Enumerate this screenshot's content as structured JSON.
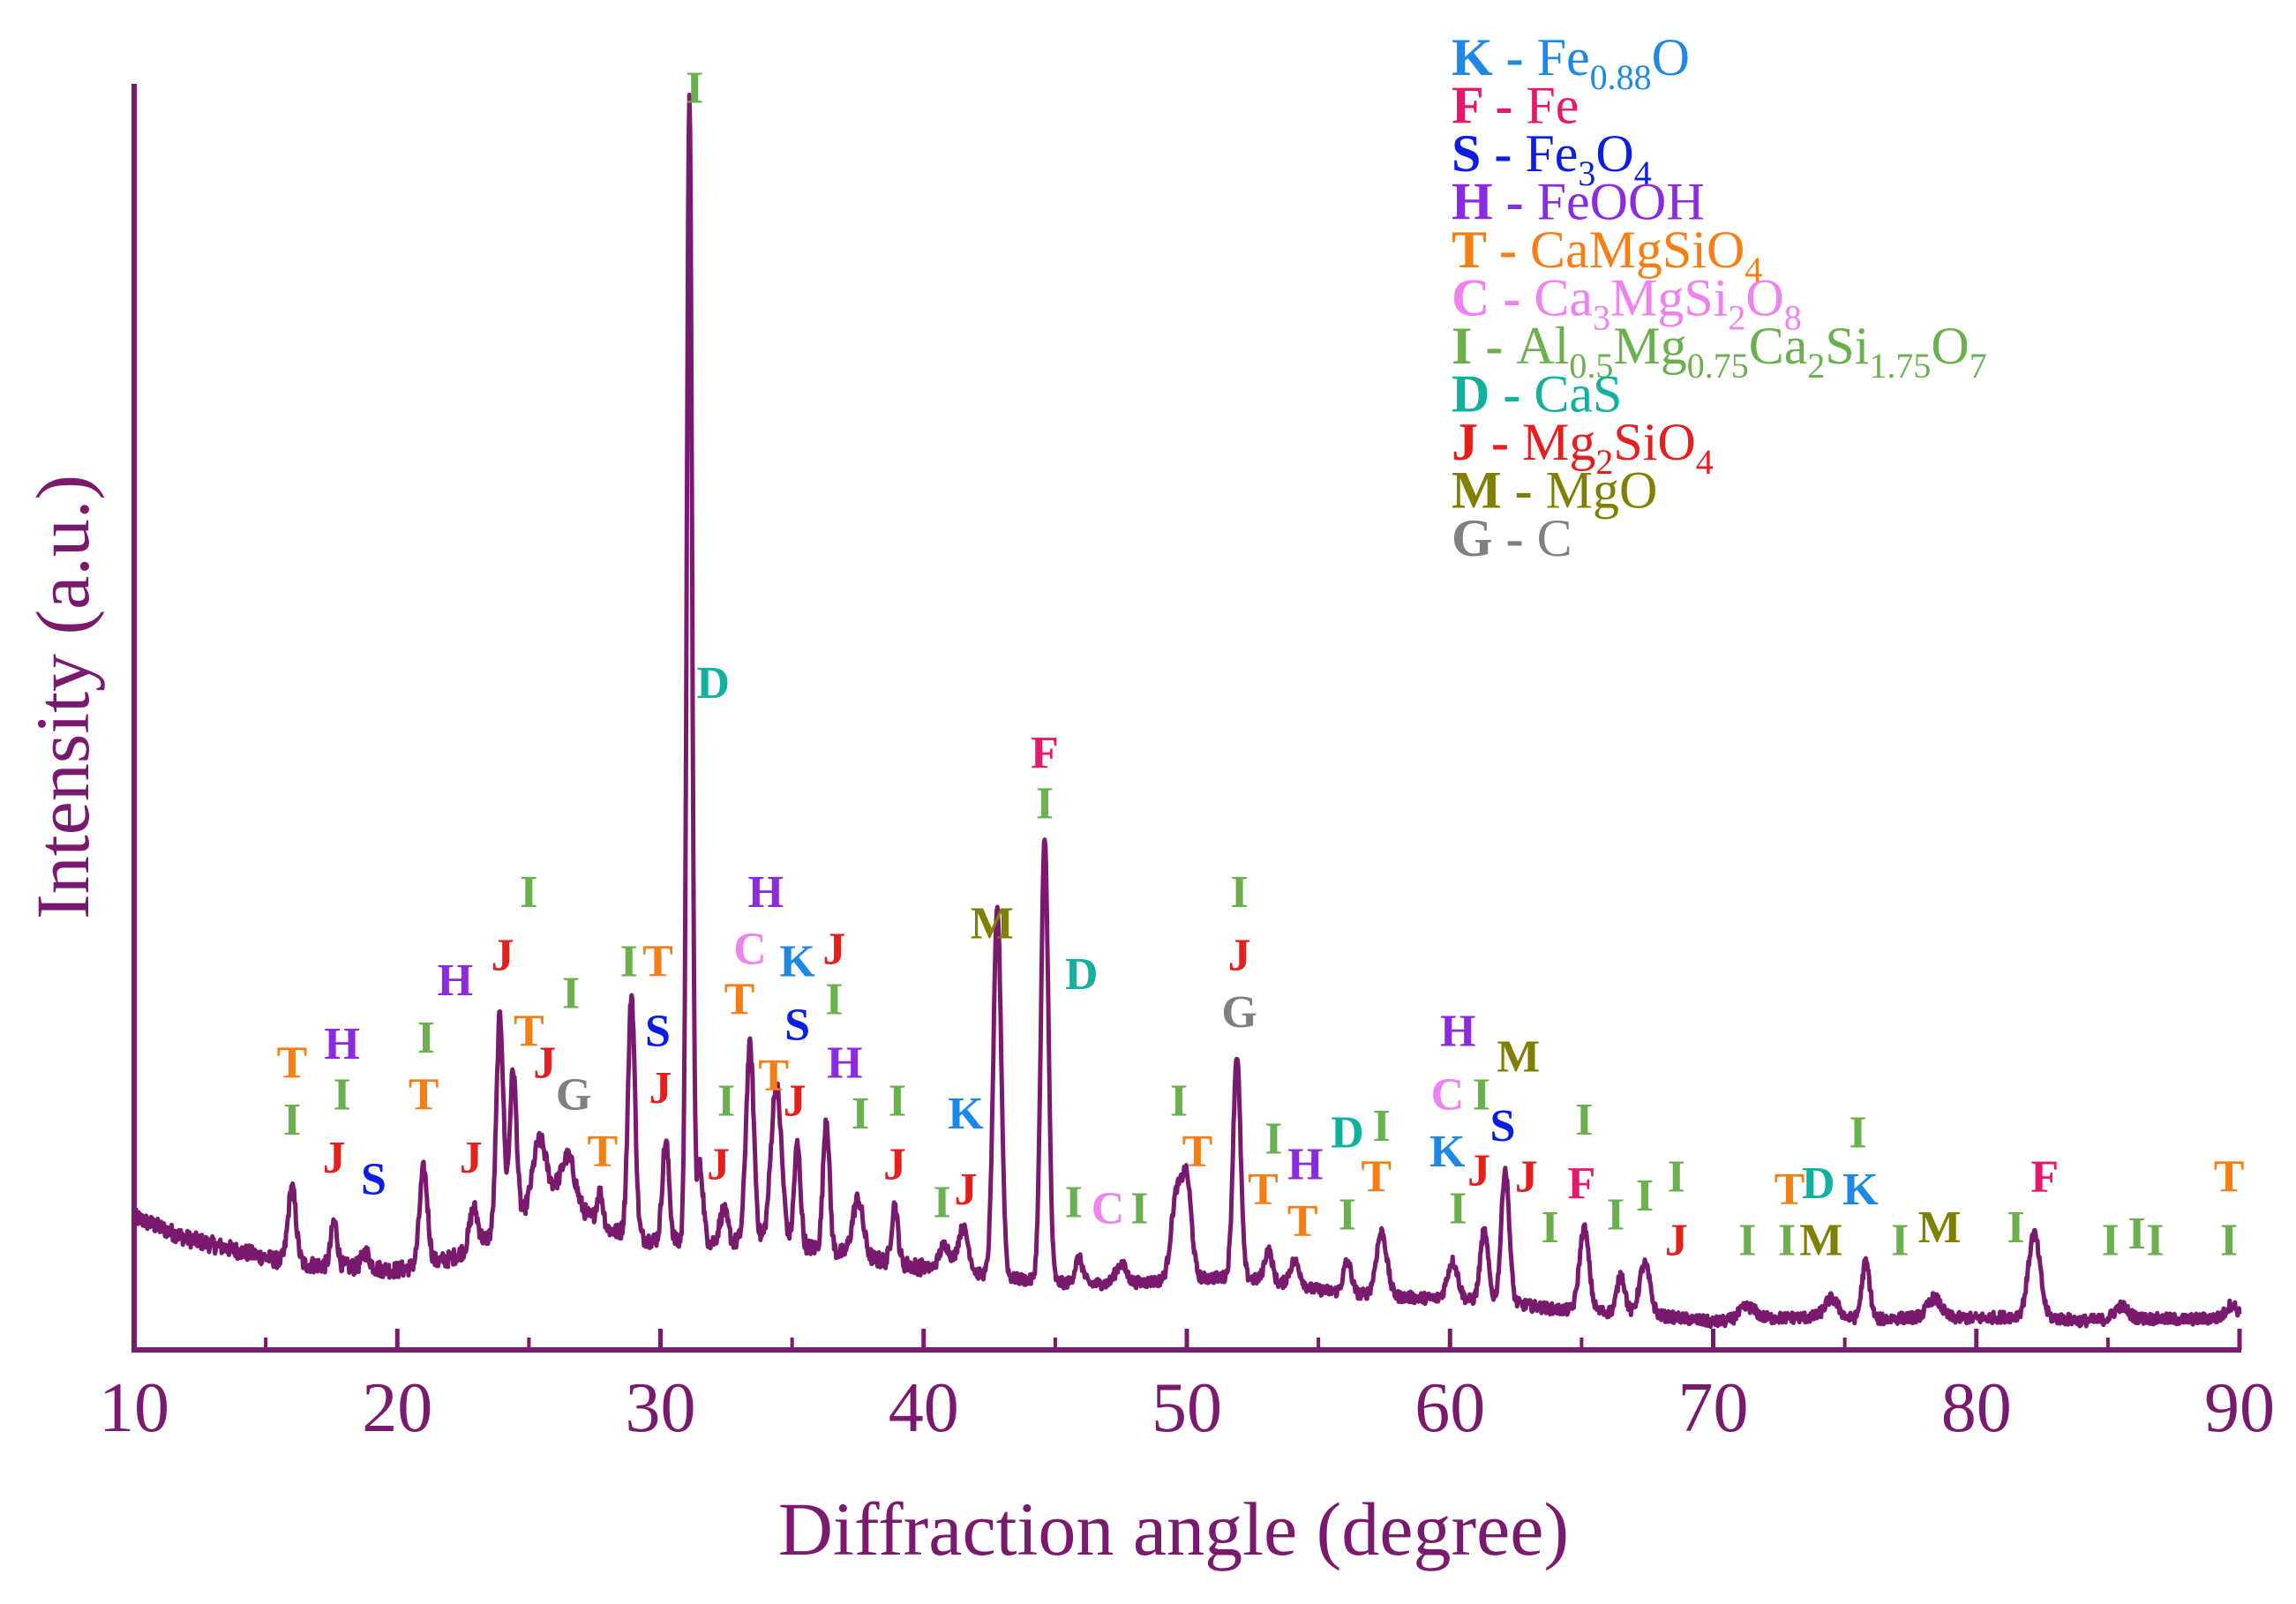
{
  "chart_data": {
    "type": "line",
    "title": "",
    "xlabel": "Diffraction angle (degree)",
    "ylabel": "Intensity (a.u.)",
    "xlim": [
      10,
      90
    ],
    "ylim": [
      0,
      100
    ],
    "x_ticks": [
      10,
      20,
      30,
      40,
      50,
      60,
      70,
      80,
      90
    ],
    "x_tick_labels": [
      "10",
      "20",
      "30",
      "40",
      "50",
      "60",
      "70",
      "80",
      "90"
    ],
    "grid": false,
    "colors": {
      "line": "#7a1a6e",
      "axis": "#7a1a6e",
      "K": "#1e88e5",
      "F": "#e6186b",
      "S": "#0b1ee0",
      "H": "#8a2be2",
      "T": "#f57f17",
      "C": "#ee82ee",
      "I": "#6ab04c",
      "D": "#13b0a0",
      "J": "#e51e1e",
      "M": "#808000",
      "G": "#808080"
    },
    "legend": [
      {
        "code": "K",
        "sep": " - ",
        "name": "Fe",
        "sub": "0.88",
        "rest": "O"
      },
      {
        "code": "F",
        "sep": " - ",
        "name": "Fe"
      },
      {
        "code": "S",
        "sep": " - ",
        "name": "Fe",
        "sub": "3",
        "rest": "O",
        "sub2": "4"
      },
      {
        "code": "H",
        "sep": " - ",
        "name": "FeOOH"
      },
      {
        "code": "T",
        "sep": " - ",
        "name": "CaMgSiO",
        "sub": "4"
      },
      {
        "code": "C",
        "sep": " - ",
        "name": "Ca",
        "sub": "3",
        "rest": "MgSi",
        "sub2": "2",
        "rest2": "O",
        "sub3": "8"
      },
      {
        "code": "I",
        "sep": " - ",
        "name": "Al",
        "sub": "0.5",
        "rest": "Mg",
        "sub2": "0.75",
        "rest2": "Ca",
        "sub3": "2",
        "rest3": "Si",
        "sub4": "1.75",
        "rest4": "O",
        "sub5": "7"
      },
      {
        "code": "D",
        "sep": " - ",
        "name": "CaS"
      },
      {
        "code": "J",
        "sep": " - ",
        "name": "Mg",
        "sub": "2",
        "rest": "SiO",
        "sub2": "4"
      },
      {
        "code": "M",
        "sep": " - ",
        "name": "MgO"
      },
      {
        "code": "G",
        "sep": " - ",
        "name": "C"
      }
    ],
    "baseline": [
      [
        10,
        10.5
      ],
      [
        12,
        8.8
      ],
      [
        14,
        7.8
      ],
      [
        16,
        6.8
      ],
      [
        18,
        6.6
      ],
      [
        20,
        6.3
      ],
      [
        22,
        7.2
      ],
      [
        24,
        9.5
      ],
      [
        26,
        12.5
      ],
      [
        28,
        9.5
      ],
      [
        30,
        8.5
      ],
      [
        32,
        8.5
      ],
      [
        34,
        8.5
      ],
      [
        36,
        8.0
      ],
      [
        38,
        7.2
      ],
      [
        40,
        6.5
      ],
      [
        42,
        6.0
      ],
      [
        44,
        5.5
      ],
      [
        46,
        5.2
      ],
      [
        48,
        5.3
      ],
      [
        50,
        5.6
      ],
      [
        52,
        5.8
      ],
      [
        54,
        5.0
      ],
      [
        56,
        4.5
      ],
      [
        58,
        4.2
      ],
      [
        60,
        4.0
      ],
      [
        62,
        3.8
      ],
      [
        64,
        3.2
      ],
      [
        66,
        3.0
      ],
      [
        68,
        2.7
      ],
      [
        70,
        2.2
      ],
      [
        72,
        2.5
      ],
      [
        74,
        2.6
      ],
      [
        76,
        2.4
      ],
      [
        78,
        2.6
      ],
      [
        80,
        2.5
      ],
      [
        82,
        2.7
      ],
      [
        84,
        2.3
      ],
      [
        86,
        2.5
      ],
      [
        88,
        2.4
      ],
      [
        90,
        2.6
      ]
    ],
    "peaks": [
      {
        "x": 16.0,
        "height": 6.0,
        "width": 0.15
      },
      {
        "x": 17.6,
        "height": 3.5,
        "width": 0.12
      },
      {
        "x": 18.8,
        "height": 1.2,
        "width": 0.15
      },
      {
        "x": 21.0,
        "height": 7.5,
        "width": 0.15
      },
      {
        "x": 22.9,
        "height": 3.0,
        "width": 0.15
      },
      {
        "x": 23.9,
        "height": 17.0,
        "width": 0.13
      },
      {
        "x": 24.4,
        "height": 12.0,
        "width": 0.13
      },
      {
        "x": 25.4,
        "height": 5.0,
        "width": 0.25
      },
      {
        "x": 26.5,
        "height": 3.5,
        "width": 0.25
      },
      {
        "x": 27.7,
        "height": 2.5,
        "width": 0.12
      },
      {
        "x": 28.9,
        "height": 19.0,
        "width": 0.13
      },
      {
        "x": 30.2,
        "height": 8.0,
        "width": 0.13
      },
      {
        "x": 31.1,
        "height": 91.0,
        "width": 0.1
      },
      {
        "x": 31.5,
        "height": 6.0,
        "width": 0.12
      },
      {
        "x": 32.4,
        "height": 2.5,
        "width": 0.15
      },
      {
        "x": 33.4,
        "height": 15.5,
        "width": 0.15
      },
      {
        "x": 34.4,
        "height": 12.5,
        "width": 0.2
      },
      {
        "x": 35.2,
        "height": 8.0,
        "width": 0.12
      },
      {
        "x": 36.3,
        "height": 10.5,
        "width": 0.12
      },
      {
        "x": 37.5,
        "height": 4.5,
        "width": 0.2
      },
      {
        "x": 38.9,
        "height": 4.5,
        "width": 0.12
      },
      {
        "x": 40.8,
        "height": 2.0,
        "width": 0.2
      },
      {
        "x": 41.5,
        "height": 3.5,
        "width": 0.2
      },
      {
        "x": 42.8,
        "height": 29.0,
        "width": 0.15
      },
      {
        "x": 44.6,
        "height": 35.0,
        "width": 0.14
      },
      {
        "x": 45.9,
        "height": 2.0,
        "width": 0.15
      },
      {
        "x": 47.5,
        "height": 1.5,
        "width": 0.2
      },
      {
        "x": 49.6,
        "height": 6.5,
        "width": 0.2
      },
      {
        "x": 50.0,
        "height": 7.5,
        "width": 0.18
      },
      {
        "x": 51.9,
        "height": 17.5,
        "width": 0.14
      },
      {
        "x": 53.1,
        "height": 2.5,
        "width": 0.15
      },
      {
        "x": 54.1,
        "height": 2.0,
        "width": 0.2
      },
      {
        "x": 56.1,
        "height": 2.5,
        "width": 0.15
      },
      {
        "x": 57.4,
        "height": 5.0,
        "width": 0.2
      },
      {
        "x": 60.1,
        "height": 3.0,
        "width": 0.2
      },
      {
        "x": 61.3,
        "height": 5.5,
        "width": 0.15
      },
      {
        "x": 62.1,
        "height": 10.5,
        "width": 0.15
      },
      {
        "x": 65.1,
        "height": 6.5,
        "width": 0.18
      },
      {
        "x": 66.5,
        "height": 3.0,
        "width": 0.15
      },
      {
        "x": 67.4,
        "height": 4.0,
        "width": 0.2
      },
      {
        "x": 71.3,
        "height": 1.0,
        "width": 0.3
      },
      {
        "x": 74.5,
        "height": 1.5,
        "width": 0.25
      },
      {
        "x": 75.8,
        "height": 4.5,
        "width": 0.15
      },
      {
        "x": 78.4,
        "height": 1.5,
        "width": 0.25
      },
      {
        "x": 82.2,
        "height": 6.5,
        "width": 0.22
      },
      {
        "x": 85.5,
        "height": 1.0,
        "width": 0.25
      },
      {
        "x": 89.7,
        "height": 1.0,
        "width": 0.2
      }
    ],
    "annotations": [
      {
        "text": "T",
        "x": 16.0,
        "y": 21.5
      },
      {
        "text": "H",
        "x": 17.9,
        "y": 23.0
      },
      {
        "text": "I",
        "x": 16.0,
        "y": 17.0
      },
      {
        "text": "I",
        "x": 17.9,
        "y": 19.0
      },
      {
        "text": "J",
        "x": 17.6,
        "y": 14.0
      },
      {
        "text": "S",
        "x": 19.1,
        "y": 12.3
      },
      {
        "text": "H",
        "x": 22.2,
        "y": 28.0
      },
      {
        "text": "I",
        "x": 21.1,
        "y": 23.5
      },
      {
        "text": "T",
        "x": 21.0,
        "y": 19.0
      },
      {
        "text": "J",
        "x": 22.8,
        "y": 14.0
      },
      {
        "text": "J",
        "x": 24.0,
        "y": 30.0
      },
      {
        "text": "I",
        "x": 25.0,
        "y": 35.0
      },
      {
        "text": "I",
        "x": 26.6,
        "y": 27.0
      },
      {
        "text": "T",
        "x": 25.0,
        "y": 24.0
      },
      {
        "text": "J",
        "x": 25.6,
        "y": 21.5
      },
      {
        "text": "G",
        "x": 26.7,
        "y": 19.0
      },
      {
        "text": "T",
        "x": 27.8,
        "y": 14.5
      },
      {
        "text": "I",
        "x": 28.8,
        "y": 29.5
      },
      {
        "text": "T",
        "x": 29.9,
        "y": 29.5
      },
      {
        "text": "S",
        "x": 29.9,
        "y": 24.0
      },
      {
        "text": "J",
        "x": 30.0,
        "y": 19.5
      },
      {
        "text": "I",
        "x": 31.3,
        "y": 98.5
      },
      {
        "text": "D",
        "x": 32.0,
        "y": 51.5
      },
      {
        "text": "I",
        "x": 32.5,
        "y": 18.5
      },
      {
        "text": "J",
        "x": 32.2,
        "y": 13.5
      },
      {
        "text": "H",
        "x": 34.0,
        "y": 35.0
      },
      {
        "text": "C",
        "x": 33.4,
        "y": 30.5
      },
      {
        "text": "K",
        "x": 35.2,
        "y": 29.5
      },
      {
        "text": "J",
        "x": 36.6,
        "y": 30.5
      },
      {
        "text": "T",
        "x": 33.0,
        "y": 26.5
      },
      {
        "text": "I",
        "x": 36.6,
        "y": 26.5
      },
      {
        "text": "S",
        "x": 35.2,
        "y": 24.5
      },
      {
        "text": "T",
        "x": 34.3,
        "y": 20.5
      },
      {
        "text": "H",
        "x": 37.0,
        "y": 21.5
      },
      {
        "text": "J",
        "x": 35.1,
        "y": 18.5
      },
      {
        "text": "I",
        "x": 37.6,
        "y": 17.5
      },
      {
        "text": "I",
        "x": 39.0,
        "y": 18.5
      },
      {
        "text": "J",
        "x": 38.9,
        "y": 13.5
      },
      {
        "text": "K",
        "x": 41.6,
        "y": 17.5
      },
      {
        "text": "J",
        "x": 41.6,
        "y": 11.5
      },
      {
        "text": "I",
        "x": 40.7,
        "y": 10.5
      },
      {
        "text": "M",
        "x": 42.6,
        "y": 32.5
      },
      {
        "text": "F",
        "x": 44.6,
        "y": 46.0
      },
      {
        "text": "I",
        "x": 44.6,
        "y": 42.0
      },
      {
        "text": "D",
        "x": 46.0,
        "y": 28.5
      },
      {
        "text": "I",
        "x": 45.7,
        "y": 10.5
      },
      {
        "text": "C",
        "x": 47.0,
        "y": 10.0
      },
      {
        "text": "I",
        "x": 48.2,
        "y": 10.0
      },
      {
        "text": "I",
        "x": 49.7,
        "y": 18.5
      },
      {
        "text": "T",
        "x": 50.4,
        "y": 14.5
      },
      {
        "text": "I",
        "x": 52.0,
        "y": 35.0
      },
      {
        "text": "J",
        "x": 52.0,
        "y": 30.0
      },
      {
        "text": "G",
        "x": 52.0,
        "y": 25.5
      },
      {
        "text": "I",
        "x": 53.3,
        "y": 15.5
      },
      {
        "text": "H",
        "x": 54.5,
        "y": 13.5
      },
      {
        "text": "T",
        "x": 52.9,
        "y": 11.5
      },
      {
        "text": "T",
        "x": 54.4,
        "y": 9.0
      },
      {
        "text": "D",
        "x": 56.1,
        "y": 16.0
      },
      {
        "text": "I",
        "x": 57.4,
        "y": 16.5
      },
      {
        "text": "I",
        "x": 56.1,
        "y": 9.5
      },
      {
        "text": "T",
        "x": 57.2,
        "y": 12.5
      },
      {
        "text": "H",
        "x": 60.3,
        "y": 24.0
      },
      {
        "text": "C",
        "x": 59.9,
        "y": 19.0
      },
      {
        "text": "I",
        "x": 61.2,
        "y": 19.0
      },
      {
        "text": "M",
        "x": 62.6,
        "y": 22.0
      },
      {
        "text": "K",
        "x": 59.9,
        "y": 14.5
      },
      {
        "text": "S",
        "x": 62.0,
        "y": 16.5
      },
      {
        "text": "J",
        "x": 61.1,
        "y": 13.0
      },
      {
        "text": "J",
        "x": 62.9,
        "y": 12.5
      },
      {
        "text": "I",
        "x": 60.3,
        "y": 10.0
      },
      {
        "text": "I",
        "x": 63.8,
        "y": 8.5
      },
      {
        "text": "I",
        "x": 65.1,
        "y": 17.0
      },
      {
        "text": "F",
        "x": 65.0,
        "y": 12.0
      },
      {
        "text": "I",
        "x": 66.3,
        "y": 9.5
      },
      {
        "text": "I",
        "x": 67.4,
        "y": 11.0
      },
      {
        "text": "I",
        "x": 68.6,
        "y": 12.5
      },
      {
        "text": "J",
        "x": 68.6,
        "y": 7.5
      },
      {
        "text": "I",
        "x": 71.3,
        "y": 7.5
      },
      {
        "text": "T",
        "x": 72.9,
        "y": 11.5
      },
      {
        "text": "D",
        "x": 74.0,
        "y": 12.0
      },
      {
        "text": "K",
        "x": 75.6,
        "y": 11.5
      },
      {
        "text": "I",
        "x": 72.8,
        "y": 7.5
      },
      {
        "text": "M",
        "x": 74.1,
        "y": 7.5
      },
      {
        "text": "I",
        "x": 75.5,
        "y": 16.0
      },
      {
        "text": "I",
        "x": 77.1,
        "y": 7.5
      },
      {
        "text": "M",
        "x": 78.6,
        "y": 8.5
      },
      {
        "text": "I",
        "x": 81.5,
        "y": 8.5
      },
      {
        "text": "F",
        "x": 82.6,
        "y": 12.5
      },
      {
        "text": "I",
        "x": 85.1,
        "y": 7.5
      },
      {
        "text": "I",
        "x": 86.1,
        "y": 8.0
      },
      {
        "text": "I",
        "x": 86.8,
        "y": 7.5
      },
      {
        "text": "T",
        "x": 89.6,
        "y": 12.5
      },
      {
        "text": "I",
        "x": 89.6,
        "y": 7.5
      }
    ]
  }
}
